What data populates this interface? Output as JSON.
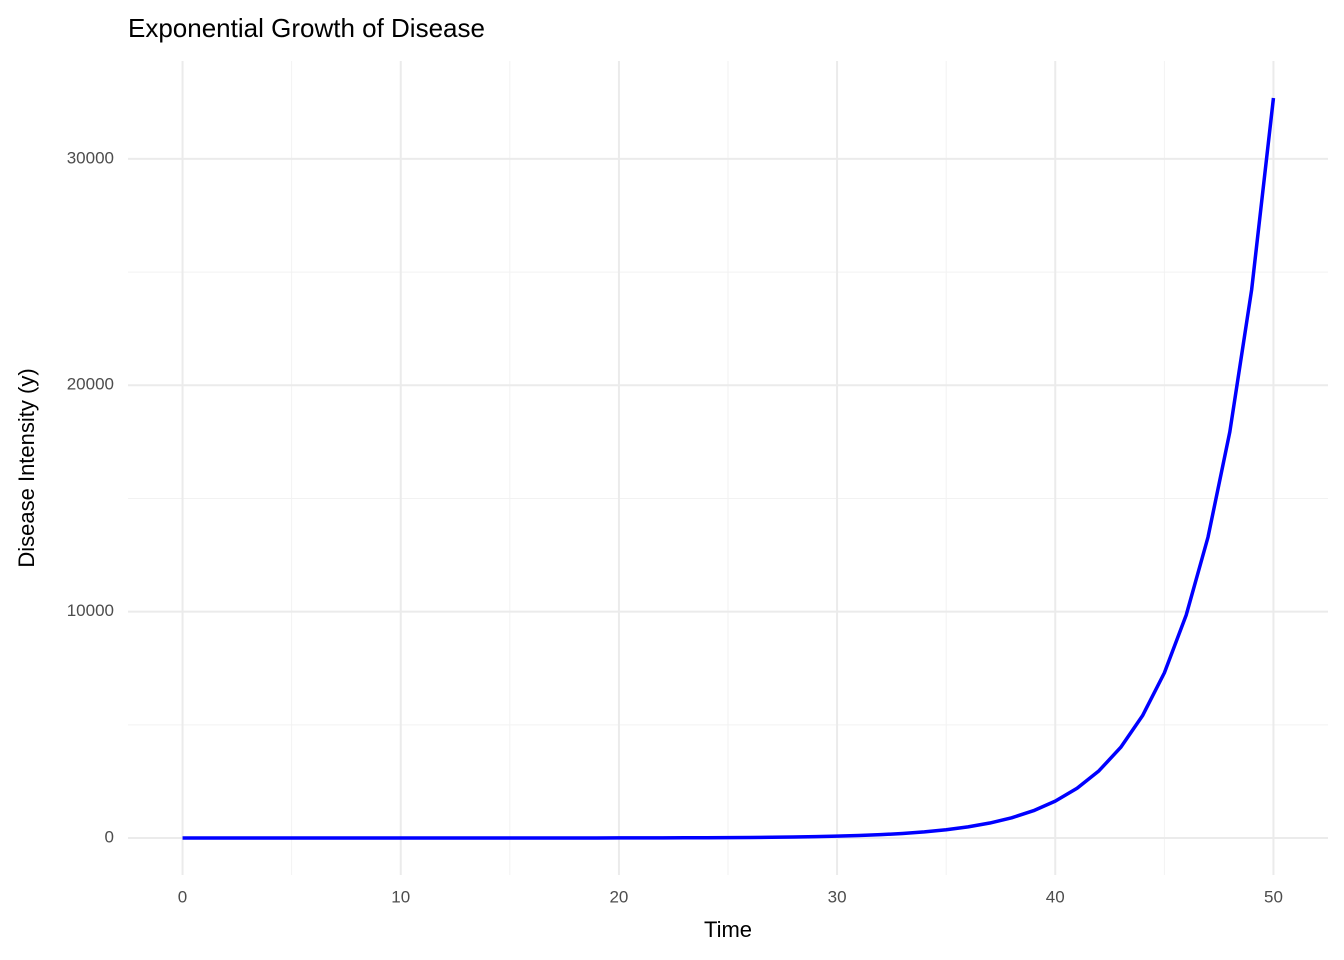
{
  "chart_data": {
    "type": "line",
    "title": "Exponential Growth of Disease",
    "x_label": "Time",
    "y_label": "Disease Intensity (y)",
    "x": [
      0,
      1,
      2,
      3,
      4,
      5,
      6,
      7,
      8,
      9,
      10,
      11,
      12,
      13,
      14,
      15,
      16,
      17,
      18,
      19,
      20,
      21,
      22,
      23,
      24,
      25,
      26,
      27,
      28,
      29,
      30,
      31,
      32,
      33,
      34,
      35,
      36,
      37,
      38,
      39,
      40,
      41,
      42,
      43,
      44,
      45,
      46,
      47,
      48,
      49,
      50
    ],
    "series": [
      {
        "name": "y",
        "color": "#0000ff",
        "values": [
          0.01,
          0.0135,
          0.0182,
          0.0246,
          0.0332,
          0.0448,
          0.0605,
          0.0817,
          0.1102,
          0.1488,
          0.2009,
          0.2711,
          0.3659,
          0.494,
          0.6669,
          0.9002,
          1.215,
          1.64,
          2.214,
          2.989,
          4.034,
          5.446,
          7.352,
          9.92,
          13.4,
          18.08,
          24.41,
          32.95,
          44.48,
          60.04,
          81.03,
          109.4,
          147.7,
          199.3,
          269.1,
          363.2,
          490.3,
          661.9,
          893.5,
          1206,
          1628,
          2197,
          2966,
          4004,
          5405,
          7294,
          9846,
          13290,
          17942,
          24219,
          32690
        ]
      }
    ],
    "xlim": [
      -2.5,
      52.5
    ],
    "ylim": [
      -1634,
      34324
    ],
    "xticks": [
      0,
      10,
      20,
      30,
      40,
      50
    ],
    "yticks": [
      0,
      10000,
      20000,
      30000
    ],
    "x_minor_grid": [
      5,
      15,
      25,
      35,
      45
    ],
    "y_minor_grid": [
      5000,
      15000,
      25000
    ],
    "grid": true
  }
}
